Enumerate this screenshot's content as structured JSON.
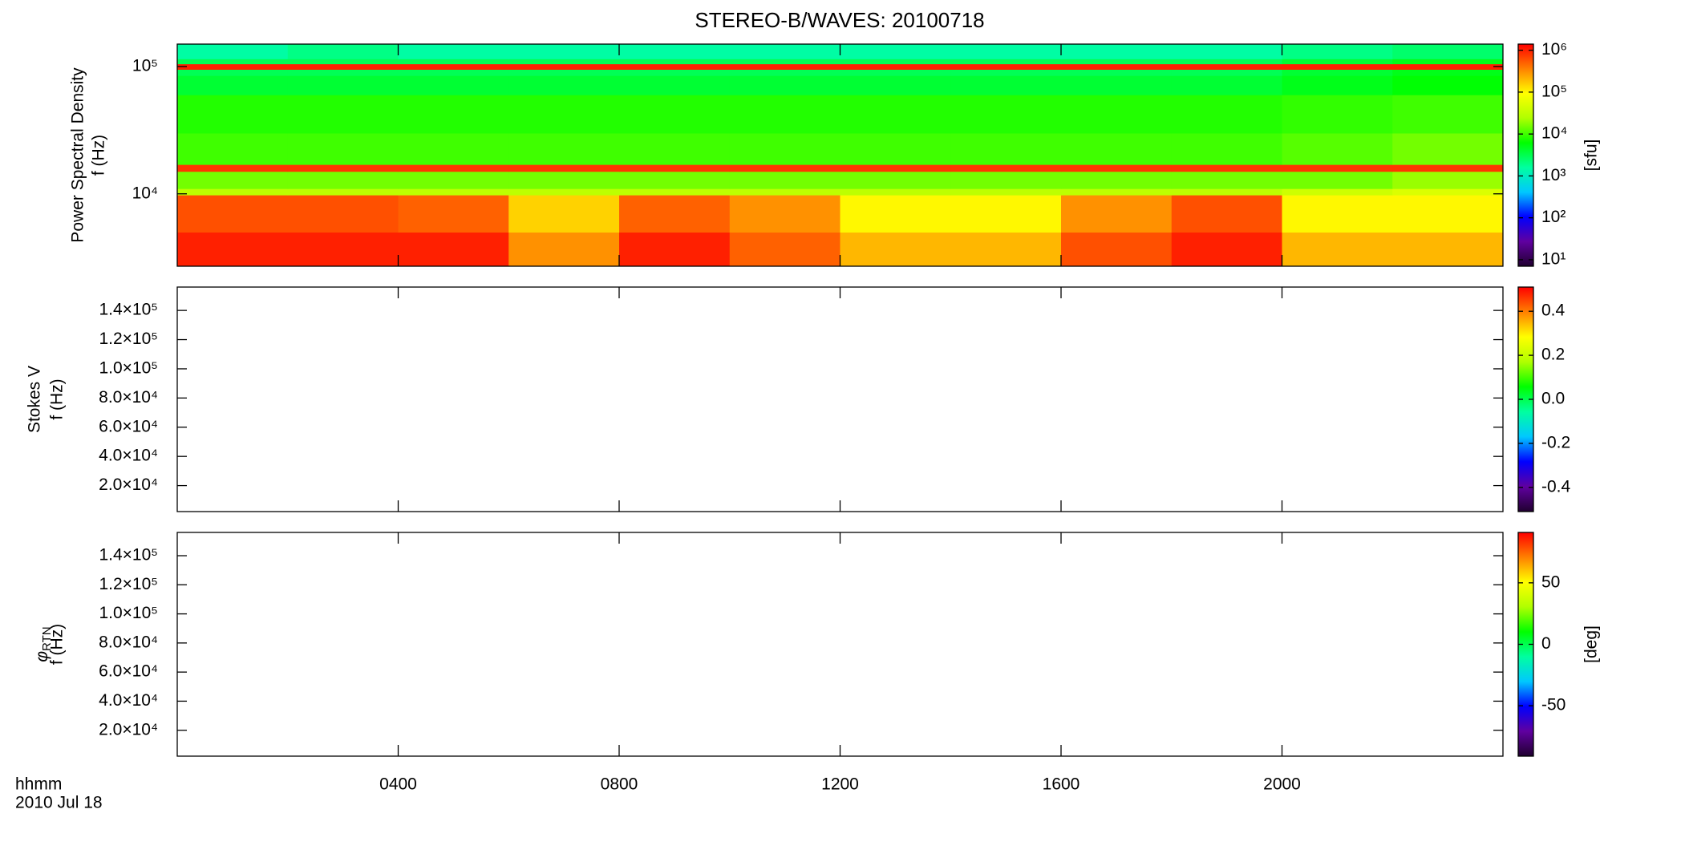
{
  "chart_data": [
    {
      "type": "spectrogram",
      "title": "STEREO-B/WAVES: 20100718",
      "ylabel": "Power Spectral Density",
      "ylabel_unit": "f (Hz)",
      "ylog": true,
      "ylim": [
        2700,
        150000
      ],
      "yticks": [
        {
          "value": 10000,
          "label": "10⁴"
        },
        {
          "value": 100000,
          "label": "10⁵"
        }
      ],
      "xlim": [
        0,
        24
      ],
      "xticks": [
        {
          "value": 4,
          "label": "0400"
        },
        {
          "value": 8,
          "label": "0800"
        },
        {
          "value": 12,
          "label": "1200"
        },
        {
          "value": 16,
          "label": "1600"
        },
        {
          "value": 20,
          "label": "2000"
        }
      ],
      "x_edges": [
        0,
        2,
        4,
        6,
        8,
        10,
        12,
        14,
        16,
        18,
        20,
        22,
        24
      ],
      "y_edges": [
        2700,
        5000,
        9800,
        11000,
        15000,
        17000,
        30000,
        60000,
        85000,
        95000,
        105000,
        115000,
        150000
      ],
      "z": [
        [
          1000000,
          1000000,
          1000000,
          300000,
          1000000,
          500000,
          200000,
          200000,
          600000,
          1000000,
          200000,
          200000
        ],
        [
          600000,
          600000,
          500000,
          150000,
          500000,
          300000,
          100000,
          100000,
          300000,
          600000,
          100000,
          100000
        ],
        [
          30000,
          30000,
          30000,
          30000,
          30000,
          30000,
          30000,
          30000,
          30000,
          30000,
          40000,
          50000
        ],
        [
          15000,
          15000,
          15000,
          15000,
          15000,
          15000,
          15000,
          15000,
          15000,
          15000,
          15000,
          20000
        ],
        [
          800000,
          800000,
          800000,
          800000,
          800000,
          800000,
          800000,
          800000,
          800000,
          800000,
          800000,
          800000
        ],
        [
          10000,
          10000,
          10000,
          10000,
          10000,
          10000,
          10000,
          10000,
          10000,
          10000,
          12000,
          15000
        ],
        [
          8000,
          8000,
          8000,
          8000,
          8000,
          8000,
          8000,
          8000,
          8000,
          8000,
          9000,
          10000
        ],
        [
          4000,
          4000,
          4000,
          4000,
          4000,
          4000,
          4000,
          4000,
          4000,
          4000,
          5000,
          6000
        ],
        [
          3000,
          3000,
          3000,
          3000,
          3000,
          3000,
          3000,
          3000,
          3000,
          3000,
          4000,
          5000
        ],
        [
          1000000,
          1000000,
          1000000,
          1000000,
          1000000,
          1000000,
          1000000,
          1000000,
          1000000,
          1000000,
          1000000,
          1000000
        ],
        [
          3000,
          3000,
          3000,
          3000,
          3000,
          3000,
          3000,
          3000,
          3000,
          3000,
          4000,
          5000
        ],
        [
          1500,
          2000,
          1500,
          1500,
          1500,
          1500,
          1500,
          1500,
          1500,
          1500,
          2000,
          2500
        ]
      ],
      "zlog": true,
      "zlim": [
        7,
        1400000
      ],
      "zticks": [
        {
          "value": 10,
          "label": "10¹"
        },
        {
          "value": 100,
          "label": "10²"
        },
        {
          "value": 1000,
          "label": "10³"
        },
        {
          "value": 10000,
          "label": "10⁴"
        },
        {
          "value": 100000,
          "label": "10⁵"
        },
        {
          "value": 1000000,
          "label": "10⁶"
        }
      ],
      "zlabel": "[sfu]",
      "colormap": [
        "#200030",
        "#6000a0",
        "#0000ff",
        "#00c8ff",
        "#00ffa0",
        "#00ff00",
        "#b0ff00",
        "#ffff00",
        "#ff8000",
        "#ff0000"
      ]
    },
    {
      "type": "spectrogram",
      "ylabel": "Stokes V",
      "ylabel_unit": "f (Hz)",
      "ylog": false,
      "ylim": [
        2200,
        156000
      ],
      "yticks": [
        {
          "value": 20000,
          "label": "2.0×10⁴"
        },
        {
          "value": 40000,
          "label": "4.0×10⁴"
        },
        {
          "value": 60000,
          "label": "6.0×10⁴"
        },
        {
          "value": 80000,
          "label": "8.0×10⁴"
        },
        {
          "value": 100000,
          "label": "1.0×10⁵"
        },
        {
          "value": 120000,
          "label": "1.2×10⁵"
        },
        {
          "value": 140000,
          "label": "1.4×10⁵"
        }
      ],
      "xlim": [
        0,
        24
      ],
      "xticks": [
        {
          "value": 4,
          "label": "0400"
        },
        {
          "value": 8,
          "label": "0800"
        },
        {
          "value": 12,
          "label": "1200"
        },
        {
          "value": 16,
          "label": "1600"
        },
        {
          "value": 20,
          "label": "2000"
        }
      ],
      "zlog": false,
      "zlim": [
        -0.51,
        0.51
      ],
      "zticks": [
        -0.4,
        -0.2,
        {
          "value": 0,
          "label": "0.0"
        },
        0.2,
        0.4
      ],
      "colormap": [
        "#200030",
        "#6000a0",
        "#0000ff",
        "#00c8ff",
        "#00ffa0",
        "#00ff00",
        "#b0ff00",
        "#ffff00",
        "#ff8000",
        "#ff0000"
      ]
    },
    {
      "type": "spectrogram",
      "ylabel_symbol": "φ",
      "ylabel_subscript": "RTN",
      "ylabel_unit": "f (Hz)",
      "ylog": false,
      "ylim": [
        2200,
        156000
      ],
      "yticks": [
        {
          "value": 20000,
          "label": "2.0×10⁴"
        },
        {
          "value": 40000,
          "label": "4.0×10⁴"
        },
        {
          "value": 60000,
          "label": "6.0×10⁴"
        },
        {
          "value": 80000,
          "label": "8.0×10⁴"
        },
        {
          "value": 100000,
          "label": "1.0×10⁵"
        },
        {
          "value": 120000,
          "label": "1.2×10⁵"
        },
        {
          "value": 140000,
          "label": "1.4×10⁵"
        }
      ],
      "xlim": [
        0,
        24
      ],
      "xticks": [
        {
          "value": 4,
          "label": "0400"
        },
        {
          "value": 8,
          "label": "0800"
        },
        {
          "value": 12,
          "label": "1200"
        },
        {
          "value": 16,
          "label": "1600"
        },
        {
          "value": 20,
          "label": "2000"
        }
      ],
      "xlabel": "hhmm",
      "date": "2010 Jul 18",
      "zlog": false,
      "zlim": [
        -91,
        91
      ],
      "zticks": [
        -50,
        0,
        50
      ],
      "zlabel": "[deg]",
      "colormap": [
        "#200030",
        "#6000a0",
        "#0000ff",
        "#00c8ff",
        "#00ffa0",
        "#00ff00",
        "#b0ff00",
        "#ffff00",
        "#ff8000",
        "#ff0000"
      ]
    }
  ]
}
